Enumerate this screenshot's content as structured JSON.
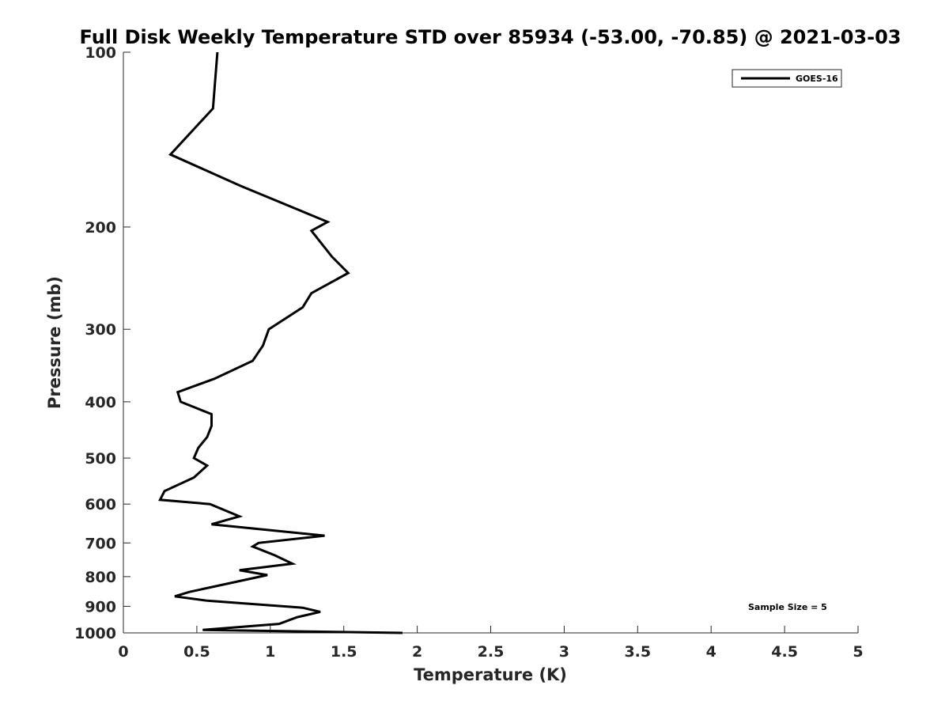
{
  "chart_data": {
    "type": "line",
    "title": "Full Disk Weekly Temperature STD over 85934 (-53.00, -70.85) @ 2021-03-03",
    "xlabel": "Temperature (K)",
    "ylabel": "Pressure (mb)",
    "xlim": [
      0,
      5
    ],
    "ylim": [
      100,
      1000
    ],
    "yscale": "log",
    "y_reversed": true,
    "x_ticks": [
      "0",
      "0.5",
      "1",
      "1.5",
      "2",
      "2.5",
      "3",
      "3.5",
      "4",
      "4.5",
      "5"
    ],
    "y_ticks": [
      100,
      200,
      300,
      400,
      500,
      600,
      700,
      800,
      900,
      1000
    ],
    "grid": false,
    "legend_position": "top-right",
    "series": [
      {
        "name": "GOES-16",
        "color": "#000000",
        "points": [
          [
            0.64,
            100
          ],
          [
            0.61,
            125
          ],
          [
            0.32,
            150
          ],
          [
            0.8,
            170
          ],
          [
            1.39,
            196
          ],
          [
            1.28,
            203
          ],
          [
            1.42,
            225
          ],
          [
            1.53,
            240
          ],
          [
            1.28,
            260
          ],
          [
            1.22,
            275
          ],
          [
            0.99,
            300
          ],
          [
            0.95,
            320
          ],
          [
            0.88,
            340
          ],
          [
            0.62,
            365
          ],
          [
            0.37,
            385
          ],
          [
            0.39,
            400
          ],
          [
            0.6,
            420
          ],
          [
            0.6,
            440
          ],
          [
            0.57,
            460
          ],
          [
            0.51,
            480
          ],
          [
            0.48,
            500
          ],
          [
            0.57,
            515
          ],
          [
            0.48,
            540
          ],
          [
            0.28,
            570
          ],
          [
            0.25,
            590
          ],
          [
            0.59,
            600
          ],
          [
            0.79,
            630
          ],
          [
            0.6,
            650
          ],
          [
            1.37,
            680
          ],
          [
            0.92,
            700
          ],
          [
            0.88,
            710
          ],
          [
            1.03,
            735
          ],
          [
            1.15,
            760
          ],
          [
            0.79,
            780
          ],
          [
            0.98,
            795
          ],
          [
            0.45,
            850
          ],
          [
            0.35,
            865
          ],
          [
            0.57,
            880
          ],
          [
            1.22,
            905
          ],
          [
            1.34,
            920
          ],
          [
            1.18,
            940
          ],
          [
            1.06,
            965
          ],
          [
            0.54,
            988
          ],
          [
            1.9,
            1000
          ]
        ]
      }
    ],
    "annotations": [
      "Sample Size = 5"
    ]
  }
}
